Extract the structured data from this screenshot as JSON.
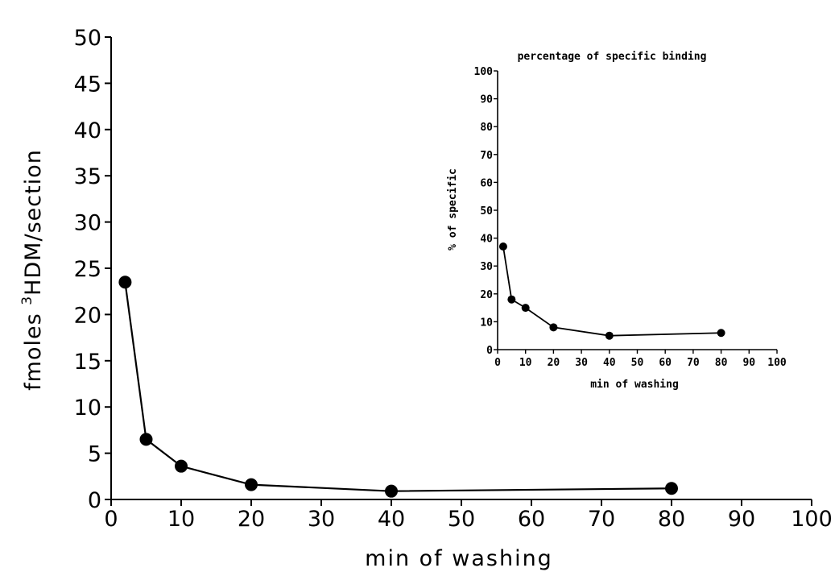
{
  "chart_data": [
    {
      "type": "line",
      "title": "",
      "xlabel": "min of washing",
      "ylabel_parts": {
        "prefix": "fmoles ",
        "superscript": "3",
        "suffix": "HDM/section"
      },
      "xlim": [
        0,
        100
      ],
      "ylim": [
        0,
        50
      ],
      "xticks": [
        0,
        10,
        20,
        30,
        40,
        50,
        60,
        70,
        80,
        90,
        100
      ],
      "yticks": [
        0,
        5,
        10,
        15,
        20,
        25,
        30,
        35,
        40,
        45,
        50
      ],
      "grid": false,
      "series": [
        {
          "x": [
            2,
            5,
            10,
            20,
            40,
            80
          ],
          "y": [
            23.5,
            6.5,
            3.6,
            1.6,
            0.9,
            1.2
          ]
        }
      ]
    },
    {
      "type": "line",
      "title": "percentage of specific binding",
      "xlabel": "min of washing",
      "ylabel": "% of specific",
      "xlim": [
        0,
        100
      ],
      "ylim": [
        0,
        100
      ],
      "xticks": [
        0,
        10,
        20,
        30,
        40,
        50,
        60,
        70,
        80,
        90,
        100
      ],
      "yticks": [
        0,
        10,
        20,
        30,
        40,
        50,
        60,
        70,
        80,
        90,
        100
      ],
      "grid": false,
      "series": [
        {
          "x": [
            2,
            5,
            10,
            20,
            40,
            80
          ],
          "y": [
            37,
            18,
            15,
            8,
            5,
            6
          ]
        }
      ]
    }
  ]
}
